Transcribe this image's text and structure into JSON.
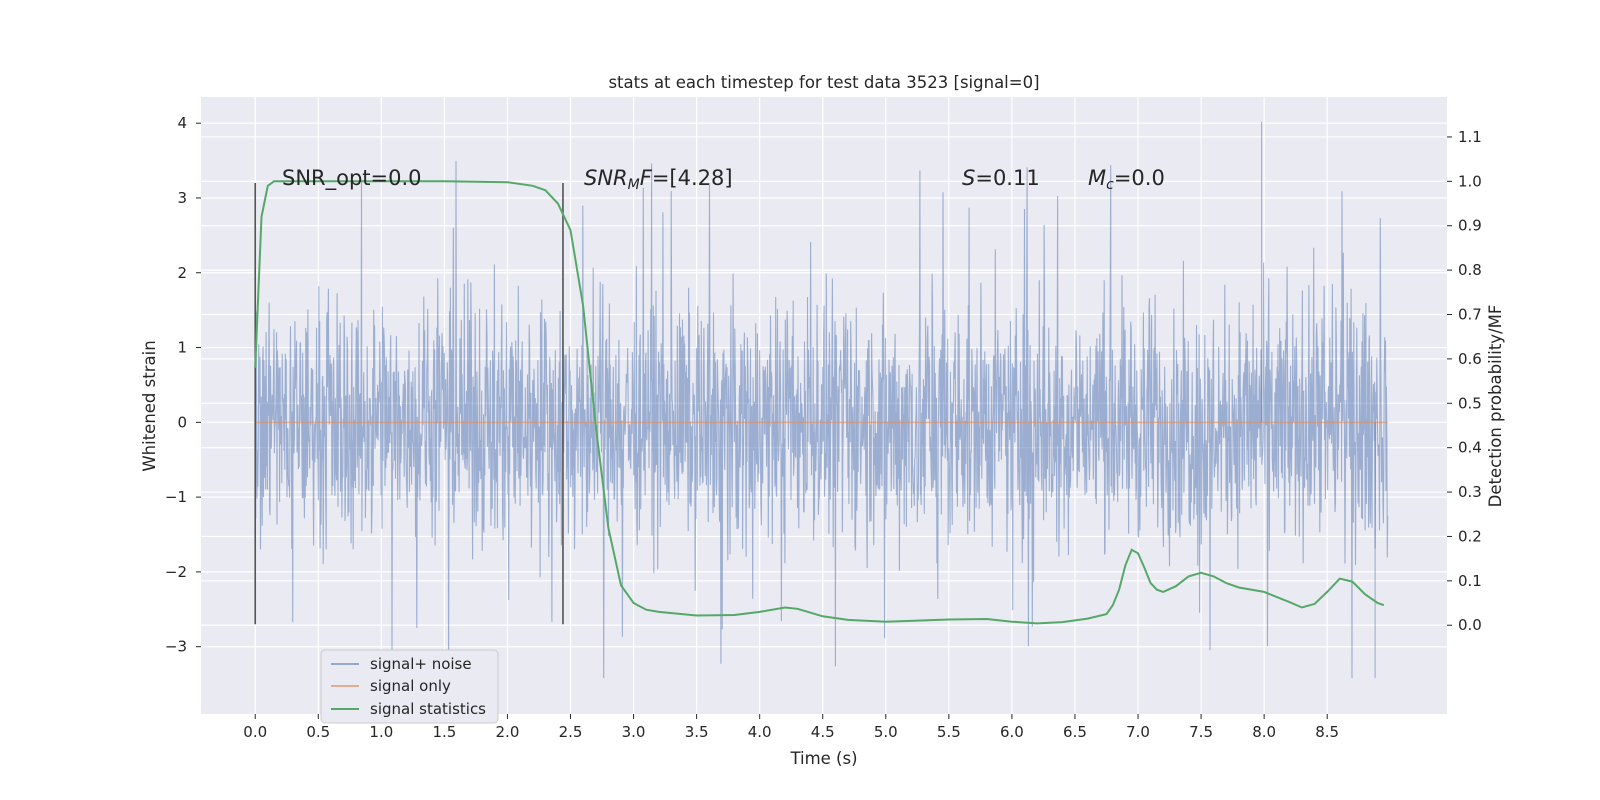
{
  "chart_data": {
    "type": "line",
    "title": "stats at each timestep for test data 3523 [signal=0]",
    "xlabel": "Time (s)",
    "ylabel": "Whitened strain",
    "ylabel_right": "Detection probability/MF",
    "xlim": [
      -0.43,
      9.45
    ],
    "ylim": [
      -3.9,
      4.35
    ],
    "ylim_right": [
      -0.2,
      1.19
    ],
    "x_ticks": [
      "0.0",
      "0.5",
      "1.0",
      "1.5",
      "2.0",
      "2.5",
      "3.0",
      "3.5",
      "4.0",
      "4.5",
      "5.0",
      "5.5",
      "6.0",
      "6.5",
      "7.0",
      "7.5",
      "8.0",
      "8.5"
    ],
    "y_ticks": [
      "4",
      "3",
      "2",
      "1",
      "0",
      "−1",
      "−2",
      "−3"
    ],
    "y_right_ticks": [
      "1.1",
      "1.0",
      "0.9",
      "0.8",
      "0.7",
      "0.6",
      "0.5",
      "0.4",
      "0.3",
      "0.2",
      "0.1",
      "0.0"
    ],
    "grid": true,
    "legend_position": "lower-left",
    "colors": {
      "axes_bg": "#eaeaf2",
      "grid": "#ffffff",
      "signal_noise": "#4c72b0",
      "signal_only": "#dd8452",
      "signal_statistics": "#55a868",
      "marker_lines": "#555555"
    },
    "annotations": {
      "snr_opt": "SNR_opt=0.0",
      "snr_mf_sym": "SNR",
      "snr_mf_sub": "M",
      "snr_mf_sym2": "F",
      "snr_mf_val": "=[4.28]",
      "s_sym": "S",
      "s_val": "=0.11",
      "mc_sym": "M",
      "mc_sub": "c",
      "mc_val": "=0.0"
    },
    "markers_x": [
      0.0,
      2.44
    ],
    "markers_ylim": [
      -2.7,
      3.2
    ],
    "series": [
      {
        "name": "signal+ noise",
        "x_range": [
          0.0,
          8.98
        ],
        "typical_range": [
          -1.9,
          2.1
        ],
        "max": 4.02,
        "min": -3.42
      },
      {
        "name": "signal only",
        "x_range": [
          0.0,
          8.98
        ],
        "values": [
          0.0
        ]
      },
      {
        "name": "signal statistics",
        "axis": "right",
        "x": [
          0.0,
          0.05,
          0.1,
          0.15,
          0.2,
          0.3,
          0.5,
          1.0,
          1.5,
          2.0,
          2.2,
          2.3,
          2.4,
          2.5,
          2.6,
          2.7,
          2.8,
          2.9,
          3.0,
          3.1,
          3.2,
          3.5,
          3.8,
          4.0,
          4.2,
          4.3,
          4.5,
          4.7,
          5.0,
          5.5,
          5.8,
          6.0,
          6.2,
          6.4,
          6.6,
          6.75,
          6.8,
          6.85,
          6.9,
          6.95,
          7.0,
          7.05,
          7.1,
          7.15,
          7.2,
          7.3,
          7.4,
          7.5,
          7.6,
          7.7,
          7.8,
          8.0,
          8.2,
          8.3,
          8.4,
          8.5,
          8.6,
          8.7,
          8.8,
          8.9,
          8.95
        ],
        "values": [
          0.58,
          0.92,
          0.99,
          1.0,
          1.0,
          1.0,
          1.0,
          1.0,
          1.0,
          0.998,
          0.99,
          0.98,
          0.95,
          0.89,
          0.72,
          0.45,
          0.22,
          0.09,
          0.05,
          0.035,
          0.03,
          0.022,
          0.023,
          0.03,
          0.04,
          0.037,
          0.02,
          0.012,
          0.008,
          0.013,
          0.014,
          0.008,
          0.004,
          0.007,
          0.015,
          0.025,
          0.045,
          0.08,
          0.135,
          0.17,
          0.162,
          0.13,
          0.095,
          0.08,
          0.075,
          0.088,
          0.11,
          0.118,
          0.11,
          0.095,
          0.085,
          0.075,
          0.052,
          0.04,
          0.048,
          0.075,
          0.105,
          0.098,
          0.07,
          0.05,
          0.045
        ]
      }
    ]
  },
  "legend": {
    "items": [
      "signal+ noise",
      "signal only",
      "signal statistics"
    ]
  }
}
